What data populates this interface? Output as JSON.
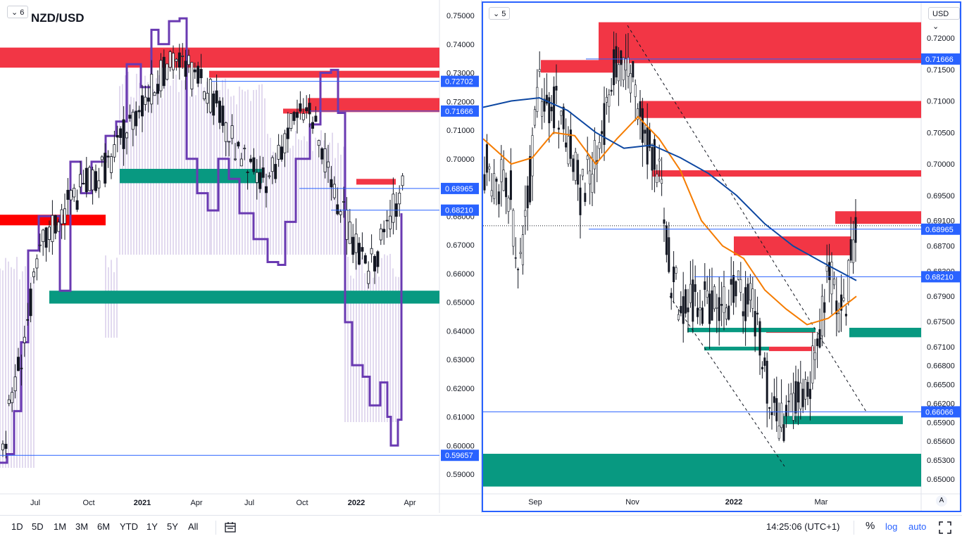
{
  "left_chart": {
    "symbol": "NZD/USD",
    "indicator_count": "6",
    "price_axis": [
      "0.75000",
      "0.74000",
      "0.73000",
      "0.72000",
      "0.71000",
      "0.70000",
      "0.69000",
      "0.68000",
      "0.67000",
      "0.66000",
      "0.65000",
      "0.64000",
      "0.63000",
      "0.62000",
      "0.61000",
      "0.60000",
      "0.59000"
    ],
    "time_axis": [
      "Jul",
      "Oct",
      "2021",
      "Apr",
      "Jul",
      "Oct",
      "2022",
      "Apr"
    ],
    "price_labels": [
      {
        "text": "0.72702",
        "value": 0.72702
      },
      {
        "text": "0.71666",
        "value": 0.71666
      },
      {
        "text": "0.68965",
        "value": 0.68965
      },
      {
        "text": "0.68210",
        "value": 0.6821
      },
      {
        "text": "0.59657",
        "value": 0.59657
      }
    ],
    "colors": {
      "supply_zone": "#f23645",
      "demand_zone": "#089981",
      "level_line": "#2962ff",
      "overlay": "#6a3ab2"
    }
  },
  "right_chart": {
    "indicator_count": "5",
    "currency": "USD",
    "price_axis": [
      "0.72000",
      "0.71500",
      "0.71000",
      "0.70500",
      "0.70000",
      "0.69500",
      "0.69100",
      "0.68700",
      "0.68300",
      "0.67900",
      "0.67500",
      "0.67100",
      "0.66800",
      "0.66500",
      "0.66200",
      "0.65900",
      "0.65600",
      "0.65300",
      "0.65000"
    ],
    "time_axis": [
      "Sep",
      "Nov",
      "2022",
      "Mar"
    ],
    "price_labels": [
      {
        "text": "0.71666",
        "value": 0.71666
      },
      {
        "text": "0.68965",
        "value": 0.68965
      },
      {
        "text": "0.68210",
        "value": 0.6821
      },
      {
        "text": "0.66066",
        "value": 0.66066
      }
    ],
    "axis_mode": "A",
    "colors": {
      "fast_ma": "#f57c00",
      "slow_ma": "#0d47a1",
      "supply_zone": "#f23645",
      "demand_zone": "#089981"
    }
  },
  "toolbar": {
    "ranges": [
      "1D",
      "5D",
      "1M",
      "3M",
      "6M",
      "YTD",
      "1Y",
      "5Y",
      "All"
    ],
    "compare_icon": "calendar-range-icon",
    "time": "14:25:06 (UTC+1)",
    "percent": "%",
    "log": "log",
    "auto": "auto",
    "fullscreen_icon": "fullscreen-icon"
  }
}
